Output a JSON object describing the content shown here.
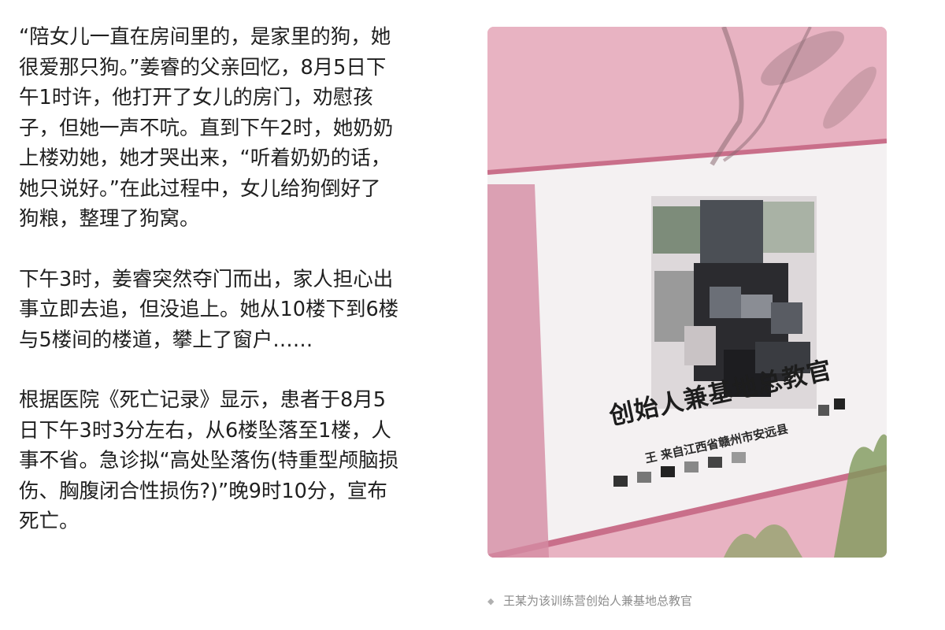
{
  "article": {
    "paragraphs": [
      {
        "lines": [
          "“陪女儿一直在房间里的，是家里的狗，她",
          "很爱那只狗。”姜睿的父亲回忆，8月5日下",
          "午1时许，他打开了女儿的房门，劝慰孩",
          "子，但她一声不吭。直到下午2时，她奶奶",
          "上楼劝她，她才哭出来，“听着奶奶的话，",
          "她只说好。”在此过程中，女儿给狗倒好了",
          "狗粮，整理了狗窝。"
        ]
      },
      {
        "lines": [
          "下午3时，姜睿突然夺门而出，家人担心出",
          "事立即去追，但没追上。她从10楼下到6楼",
          "与5楼间的楼道，攀上了窗户……"
        ]
      },
      {
        "lines": [
          "根据医院《死亡记录》显示，患者于8月5",
          "日下午3时3分左右，从6楼坠落至1楼，人",
          "事不省。急诊拟“高处坠落伤(特重型颅脑损",
          "伤、胸腹闭合性损伤?)”晚9时10分，宣布",
          "死亡。"
        ]
      }
    ]
  },
  "photo": {
    "board_title": "创始人兼基地总教官",
    "board_subtitle": "王  来自江西省赣州市安远县",
    "caption": "王某为该训练营创始人兼基地总教官",
    "caption_icon": "diamond-icon",
    "colors": {
      "board_pink": "#e8b3c2",
      "board_white": "#f4f1f2",
      "frame": "#c96f8a"
    }
  }
}
